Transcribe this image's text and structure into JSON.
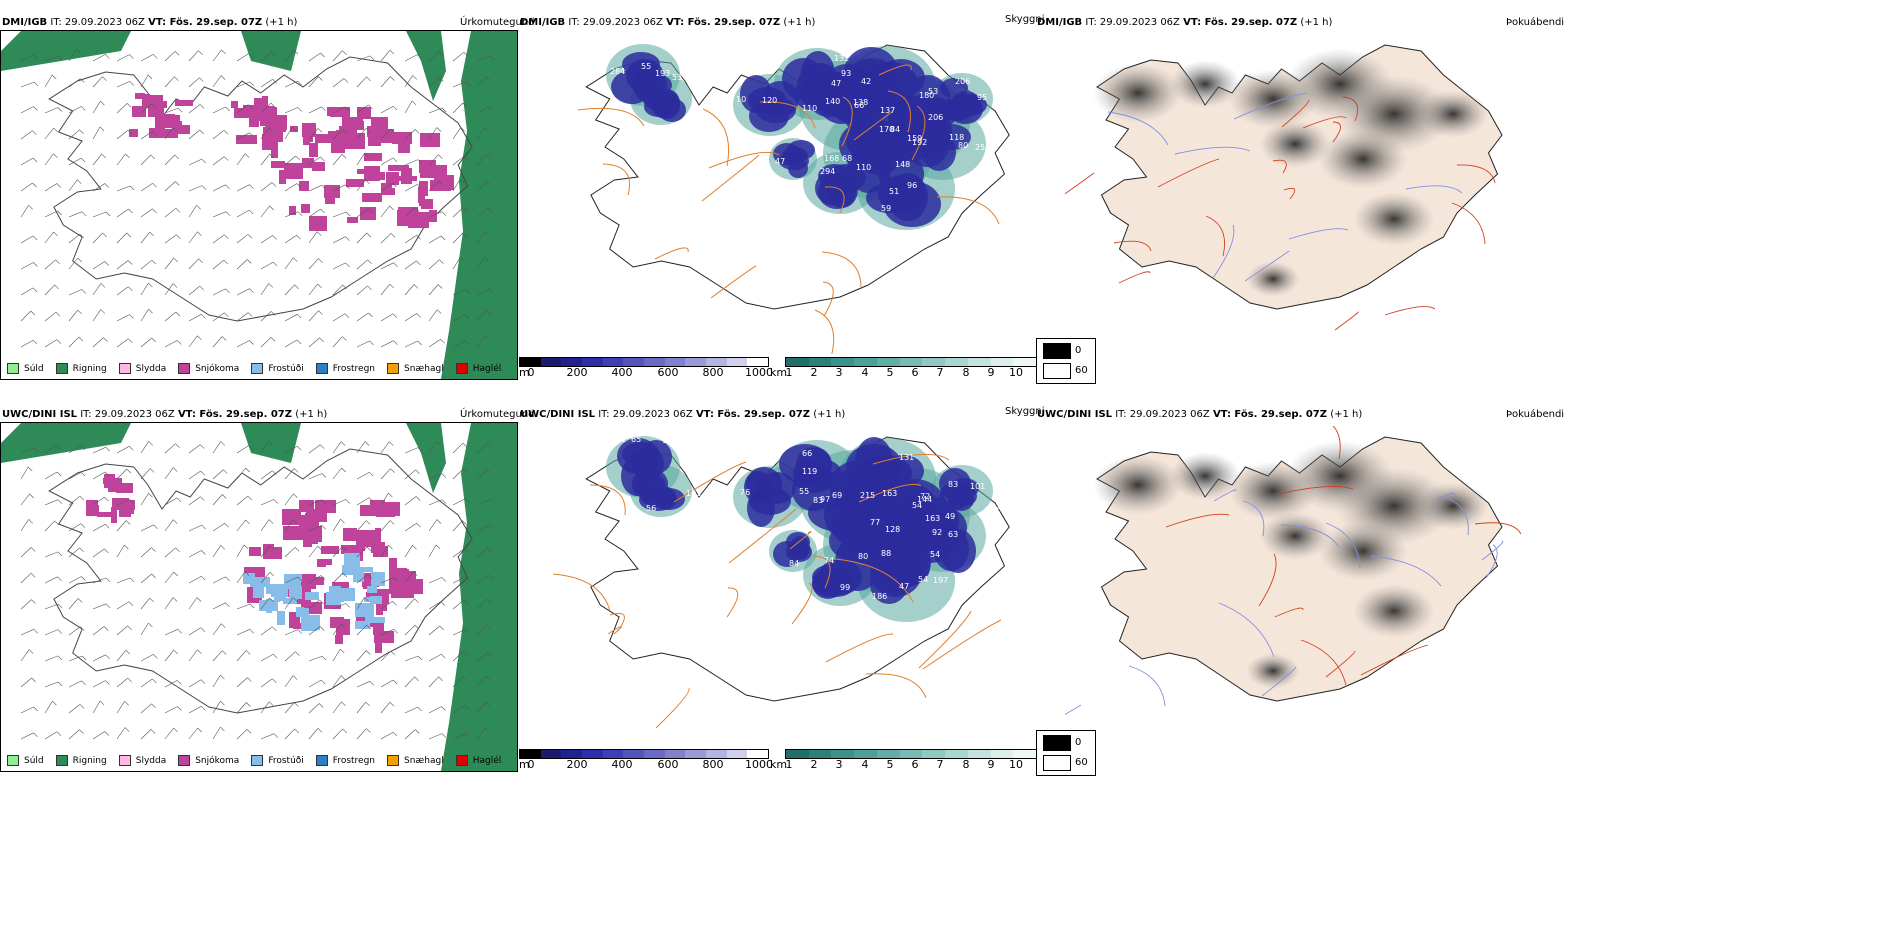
{
  "rows": [
    {
      "model": "DMI/IGB",
      "it": "IT: 29.09.2023 06Z",
      "vt": "VT: Fös. 29.sep. 07Z",
      "lead": "(+1 h)",
      "labels": [
        {
          "value": "65"
        },
        {
          "value": "74"
        },
        {
          "value": "10"
        },
        {
          "value": "47"
        },
        {
          "value": "42"
        },
        {
          "value": "66"
        },
        {
          "value": "192"
        },
        {
          "value": "84"
        },
        {
          "value": "118"
        },
        {
          "value": "96"
        },
        {
          "value": "68"
        },
        {
          "value": "53"
        },
        {
          "value": "47"
        },
        {
          "value": "55"
        },
        {
          "value": "53"
        },
        {
          "value": "110"
        },
        {
          "value": "93"
        },
        {
          "value": "170"
        },
        {
          "value": "138"
        },
        {
          "value": "137"
        },
        {
          "value": "159"
        },
        {
          "value": "80"
        },
        {
          "value": "51"
        },
        {
          "value": "294"
        },
        {
          "value": "206"
        },
        {
          "value": "168"
        },
        {
          "value": "284"
        },
        {
          "value": "193"
        },
        {
          "value": "120"
        },
        {
          "value": "132"
        },
        {
          "value": "140"
        },
        {
          "value": "180"
        },
        {
          "value": "206"
        },
        {
          "value": "148"
        },
        {
          "value": "255"
        },
        {
          "value": "59"
        },
        {
          "value": "110"
        },
        {
          "value": "95"
        }
      ]
    },
    {
      "model": "UWC/DINI ISL",
      "it": "IT: 29.09.2023 06Z",
      "vt": "VT: Fös. 29.sep. 07Z",
      "lead": "(+1 h)",
      "labels": [
        {
          "value": "111"
        },
        {
          "value": "133"
        },
        {
          "value": "119"
        },
        {
          "value": "66"
        },
        {
          "value": "163"
        },
        {
          "value": "72"
        },
        {
          "value": "63"
        },
        {
          "value": "77"
        },
        {
          "value": "54"
        },
        {
          "value": "47"
        },
        {
          "value": "80"
        },
        {
          "value": "83"
        },
        {
          "value": "74"
        },
        {
          "value": "65"
        },
        {
          "value": "56"
        },
        {
          "value": "55"
        },
        {
          "value": "83"
        },
        {
          "value": "215"
        },
        {
          "value": "131"
        },
        {
          "value": "54"
        },
        {
          "value": "88"
        },
        {
          "value": "49"
        },
        {
          "value": "54"
        },
        {
          "value": "99"
        },
        {
          "value": "102"
        },
        {
          "value": "84"
        },
        {
          "value": "104"
        },
        {
          "value": "101"
        },
        {
          "value": "76"
        },
        {
          "value": "69"
        },
        {
          "value": "97"
        },
        {
          "value": "144"
        },
        {
          "value": "163"
        },
        {
          "value": "128"
        },
        {
          "value": "92"
        },
        {
          "value": "197"
        },
        {
          "value": "186"
        },
        {
          "value": "101"
        }
      ]
    }
  ],
  "panels": {
    "precip_type_title": "Úrkomutegund",
    "visibility_title": "Skyggni",
    "fog_title": "Þokuábendi"
  },
  "precip_legend": [
    {
      "label": "Súld",
      "color": "#90ee90"
    },
    {
      "label": "Rigning",
      "color": "#2e8b57"
    },
    {
      "label": "Slydda",
      "color": "#ffb6e1"
    },
    {
      "label": "Snjókoma",
      "color": "#c0439b"
    },
    {
      "label": "Frostúði",
      "color": "#87bde8"
    },
    {
      "label": "Frostregn",
      "color": "#2f7fc8"
    },
    {
      "label": "Snæhagl",
      "color": "#f5a000"
    },
    {
      "label": "Haglél",
      "color": "#e00000"
    }
  ],
  "height_scale": {
    "unit": "m",
    "ticks": [
      "0",
      "200",
      "400",
      "600",
      "800",
      "1000"
    ],
    "colors": [
      "#000000",
      "#1a1a6e",
      "#22228f",
      "#2e2ea8",
      "#3f3fb5",
      "#5454bd",
      "#6a6ac4",
      "#8080cc",
      "#9a9ad6",
      "#b4b4e0",
      "#d0d0ec",
      "#ffffff"
    ]
  },
  "vis_scale": {
    "unit": "km",
    "ticks": [
      "1",
      "2",
      "3",
      "4",
      "5",
      "6",
      "7",
      "8",
      "9",
      "10"
    ],
    "colors": [
      "#1f6f6a",
      "#2c807a",
      "#3c918a",
      "#4da098",
      "#62aea6",
      "#78bbb4",
      "#90c9c2",
      "#a8d6d0",
      "#c2e3de",
      "#dcefec",
      "#f0f8f6"
    ]
  },
  "fog_legend": [
    {
      "label": "0",
      "color": "#000000"
    },
    {
      "label": "60",
      "color": "#ffffff"
    }
  ],
  "colors": {
    "land_bg": "#f5e6da",
    "roads": "#e06020",
    "rain": "#2e8b57",
    "snow": "#c0439b",
    "cloud_blue": "#2b2b9e",
    "teal": "#5aa8a0"
  }
}
